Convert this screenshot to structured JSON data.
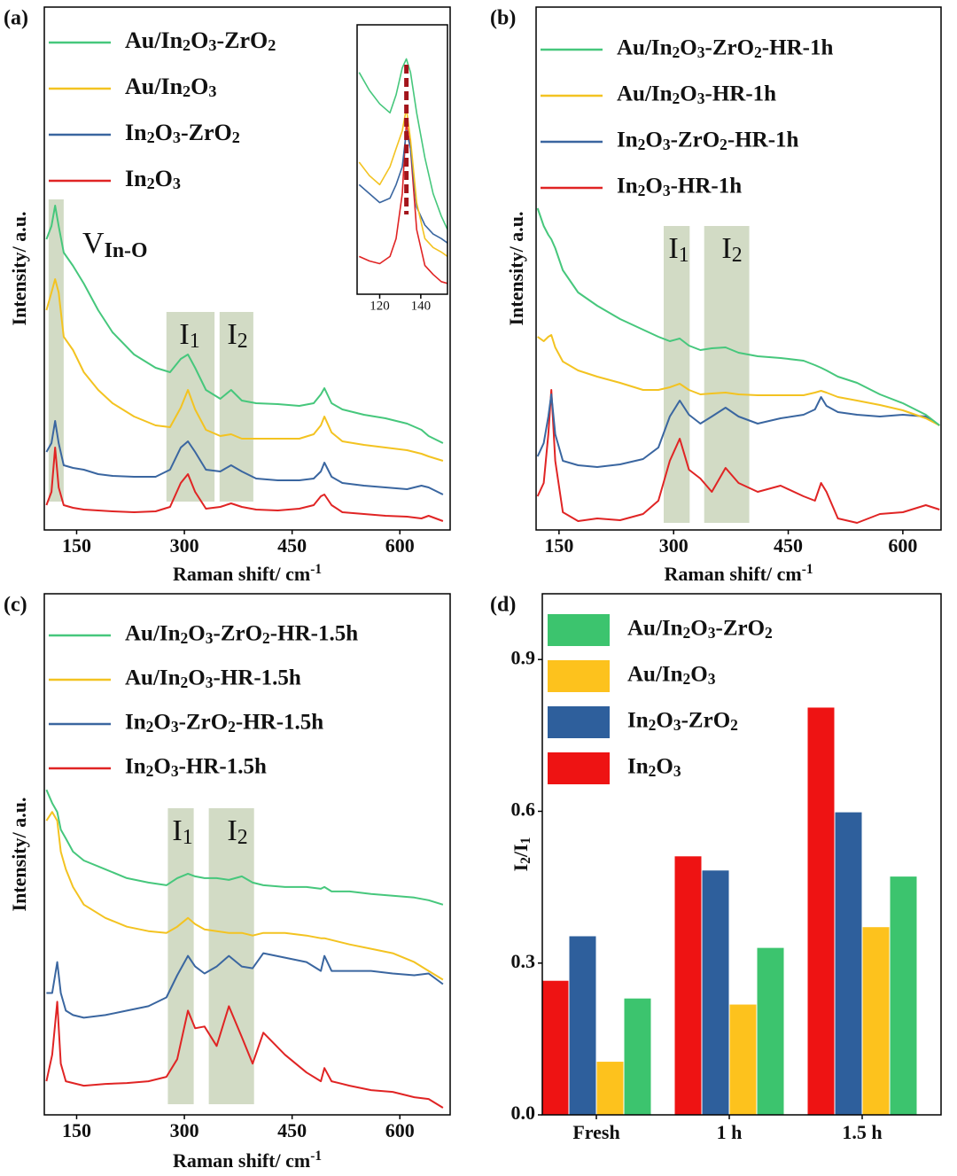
{
  "chart_data": [
    {
      "type": "line",
      "title": "(a)",
      "xlabel": "Raman shift/ cm-1",
      "ylabel": "Intensity/ a.u.",
      "x": [
        108,
        115,
        120,
        125,
        132,
        145,
        160,
        180,
        200,
        230,
        260,
        280,
        295,
        305,
        315,
        330,
        350,
        365,
        380,
        400,
        430,
        460,
        480,
        490,
        495,
        505,
        520,
        550,
        580,
        610,
        630,
        640,
        660
      ],
      "xlim": [
        105,
        670
      ],
      "xticks": [
        150,
        300,
        450,
        600
      ],
      "ylim": [
        0,
        590
      ],
      "highlights": [
        {
          "range": [
            111,
            132
          ],
          "label": "V",
          "subscript": "In-O"
        },
        {
          "range": [
            275,
            342
          ],
          "label": "I1"
        },
        {
          "range": [
            349,
            396
          ],
          "label": "I2"
        }
      ],
      "series": [
        {
          "name": "Au/In2O3-ZrO2",
          "color": "#46c77c",
          "values": [
            328,
            343,
            366,
            343,
            313,
            298,
            278,
            248,
            223,
            198,
            183,
            178,
            193,
            198,
            183,
            158,
            148,
            158,
            146,
            143,
            142,
            140,
            143,
            153,
            160,
            143,
            136,
            130,
            126,
            120,
            113,
            106,
            98
          ]
        },
        {
          "name": "Au/In2O3",
          "color": "#f3c321",
          "values": [
            248,
            268,
            283,
            268,
            218,
            203,
            178,
            158,
            143,
            128,
            118,
            116,
            138,
            158,
            136,
            113,
            106,
            108,
            103,
            103,
            103,
            103,
            108,
            118,
            128,
            110,
            100,
            96,
            93,
            90,
            86,
            83,
            78
          ]
        },
        {
          "name": "In2O3-ZrO2",
          "color": "#3a66a0",
          "values": [
            88,
            98,
            123,
            98,
            73,
            70,
            68,
            63,
            61,
            60,
            60,
            68,
            93,
            100,
            88,
            68,
            66,
            73,
            66,
            58,
            56,
            56,
            58,
            66,
            76,
            60,
            53,
            50,
            48,
            46,
            50,
            48,
            40
          ]
        },
        {
          "name": "In2O3",
          "color": "#e02424",
          "values": [
            28,
            43,
            93,
            48,
            28,
            25,
            23,
            22,
            21,
            20,
            21,
            26,
            53,
            63,
            43,
            24,
            26,
            30,
            26,
            23,
            22,
            24,
            28,
            38,
            40,
            28,
            20,
            18,
            16,
            15,
            13,
            16,
            10
          ]
        }
      ]
    },
    {
      "type": "line",
      "x": [
        110,
        115,
        120,
        125,
        128,
        131,
        133,
        135,
        138,
        142,
        146,
        150,
        153
      ],
      "xlim": [
        109,
        153
      ],
      "xticks": [
        120,
        140
      ],
      "ylim": [
        0,
        300
      ],
      "marker_x": 133,
      "series": [
        {
          "color": "#46c77c",
          "values": [
            247,
            227,
            212,
            202,
            222,
            252,
            262,
            247,
            202,
            152,
            112,
            87,
            72
          ]
        },
        {
          "color": "#f3c321",
          "values": [
            147,
            132,
            122,
            142,
            162,
            182,
            207,
            172,
            102,
            62,
            52,
            47,
            42
          ]
        },
        {
          "color": "#3a66a0",
          "values": [
            122,
            112,
            102,
            107,
            122,
            142,
            182,
            162,
            97,
            77,
            67,
            62,
            57
          ]
        },
        {
          "color": "#e02424",
          "values": [
            42,
            37,
            34,
            42,
            62,
            112,
            192,
            162,
            72,
            32,
            22,
            14,
            12
          ]
        }
      ]
    },
    {
      "type": "line",
      "title": "(b)",
      "xlabel": "Raman shift/ cm-1",
      "ylabel": "Intensity/ a.u.",
      "x": [
        122,
        130,
        136,
        140,
        145,
        155,
        175,
        200,
        230,
        260,
        280,
        295,
        308,
        320,
        335,
        350,
        368,
        385,
        410,
        440,
        470,
        485,
        493,
        500,
        515,
        540,
        570,
        600,
        630,
        648
      ],
      "xlim": [
        120,
        650
      ],
      "xticks": [
        150,
        300,
        450,
        600
      ],
      "ylim": [
        0,
        590
      ],
      "highlights": [
        {
          "range": [
            287,
            321
          ],
          "label": "I1"
        },
        {
          "range": [
            340,
            399
          ],
          "label": "I2"
        }
      ],
      "series": [
        {
          "name": "Au/In2O3-ZrO2-HR-1h",
          "color": "#46c77c",
          "values": [
            363,
            343,
            333,
            328,
            318,
            293,
            268,
            253,
            238,
            226,
            218,
            213,
            216,
            208,
            203,
            205,
            206,
            200,
            196,
            194,
            191,
            186,
            183,
            180,
            173,
            166,
            153,
            143,
            130,
            118
          ]
        },
        {
          "name": "Au/In2O3-HR-1h",
          "color": "#f3c321",
          "values": [
            218,
            213,
            218,
            220,
            206,
            190,
            180,
            173,
            166,
            158,
            158,
            161,
            165,
            158,
            153,
            154,
            155,
            153,
            152,
            152,
            152,
            155,
            157,
            155,
            150,
            146,
            141,
            135,
            126,
            118
          ]
        },
        {
          "name": "In2O3-ZrO2-HR-1h",
          "color": "#3a66a0",
          "values": [
            83,
            98,
            128,
            153,
            108,
            78,
            73,
            71,
            74,
            80,
            93,
            128,
            146,
            130,
            120,
            128,
            138,
            128,
            120,
            126,
            130,
            136,
            150,
            140,
            133,
            130,
            128,
            130,
            128,
            118
          ]
        },
        {
          "name": "In2O3-HR-1h",
          "color": "#e02424",
          "values": [
            38,
            53,
            108,
            158,
            78,
            20,
            10,
            13,
            11,
            18,
            33,
            78,
            103,
            68,
            58,
            43,
            70,
            53,
            43,
            50,
            38,
            33,
            53,
            43,
            13,
            8,
            18,
            20,
            28,
            23
          ]
        }
      ]
    },
    {
      "type": "line",
      "title": "(c)",
      "xlabel": "Raman shift/ cm-1",
      "ylabel": "Intensity/ a.u.",
      "x": [
        108,
        116,
        123,
        128,
        135,
        145,
        160,
        190,
        220,
        250,
        275,
        290,
        305,
        315,
        328,
        345,
        362,
        380,
        395,
        410,
        440,
        470,
        490,
        495,
        505,
        530,
        560,
        590,
        620,
        640,
        660
      ],
      "xlim": [
        105,
        670
      ],
      "xticks": [
        150,
        300,
        450,
        600
      ],
      "ylim": [
        0,
        590
      ],
      "highlights": [
        {
          "range": [
            277,
            313
          ],
          "label": "I1"
        },
        {
          "range": [
            334,
            397
          ],
          "label": "I2"
        }
      ],
      "series": [
        {
          "name": "Au/In2O3-ZrO2-HR-1.5h",
          "color": "#46c77c",
          "values": [
            368,
            353,
            343,
            323,
            313,
            298,
            288,
            278,
            268,
            263,
            260,
            268,
            273,
            270,
            268,
            268,
            266,
            270,
            263,
            260,
            258,
            258,
            256,
            258,
            253,
            253,
            250,
            248,
            246,
            243,
            238
          ]
        },
        {
          "name": "Au/In2O3-HR-1.5h",
          "color": "#f3c321",
          "values": [
            333,
            343,
            333,
            298,
            278,
            258,
            238,
            223,
            213,
            208,
            206,
            213,
            223,
            216,
            210,
            208,
            206,
            206,
            203,
            206,
            206,
            203,
            200,
            200,
            198,
            193,
            188,
            183,
            173,
            163,
            153
          ]
        },
        {
          "name": "In2O3-ZrO2-HR-1.5h",
          "color": "#3a66a0",
          "values": [
            138,
            138,
            173,
            138,
            118,
            113,
            110,
            113,
            118,
            123,
            133,
            158,
            180,
            168,
            160,
            168,
            180,
            168,
            166,
            183,
            178,
            173,
            163,
            180,
            163,
            163,
            163,
            160,
            158,
            160,
            148
          ]
        },
        {
          "name": "In2O3-HR-1.5h",
          "color": "#e02424",
          "values": [
            38,
            68,
            128,
            58,
            38,
            36,
            33,
            35,
            36,
            38,
            43,
            63,
            118,
            98,
            100,
            78,
            123,
            88,
            58,
            93,
            68,
            48,
            38,
            53,
            38,
            33,
            28,
            26,
            20,
            18,
            8
          ]
        }
      ]
    },
    {
      "type": "bar",
      "title": "(d)",
      "ylabel": "I2/I1",
      "categories": [
        "Fresh",
        "1 h",
        "1.5 h"
      ],
      "ylim": [
        0,
        1.03
      ],
      "yticks": [
        {
          "value": 0,
          "label": "0.0"
        },
        0.3,
        0.6,
        0.9
      ],
      "series": [
        {
          "name": "Au/In2O3-ZrO2",
          "color": "#3cc46e",
          "values": [
            0.23,
            0.33,
            0.471
          ]
        },
        {
          "name": "Au/In2O3",
          "color": "#fdc21d",
          "values": [
            0.105,
            0.218,
            0.371
          ]
        },
        {
          "name": "In2O3-ZrO2",
          "color": "#2e5f9c",
          "values": [
            0.353,
            0.483,
            0.598
          ]
        },
        {
          "name": "In2O3",
          "color": "#ee1313",
          "values": [
            0.265,
            0.511,
            0.805
          ]
        }
      ]
    }
  ]
}
